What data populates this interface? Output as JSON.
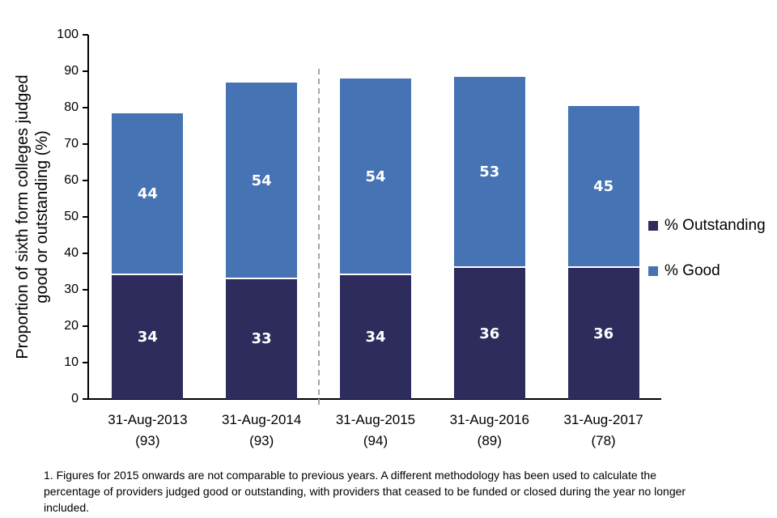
{
  "chart_data": {
    "type": "stacked-bar",
    "title": "",
    "ylabel": "Proportion of sixth form colleges judged good or outstanding (%)",
    "ylabel_lines": [
      "Proportion of sixth form colleges judged",
      "good or outstanding (%)"
    ],
    "ylim": [
      0,
      100
    ],
    "yticks": [
      0,
      10,
      20,
      30,
      40,
      50,
      60,
      70,
      80,
      90,
      100
    ],
    "grid": false,
    "legend_position": "right",
    "categories": [
      {
        "label": "31-Aug-2013",
        "sublabel": "(93)"
      },
      {
        "label": "31-Aug-2014",
        "sublabel": "(93)"
      },
      {
        "label": "31-Aug-2015",
        "sublabel": "(94)"
      },
      {
        "label": "31-Aug-2016",
        "sublabel": "(89)"
      },
      {
        "label": "31-Aug-2017",
        "sublabel": "(78)"
      }
    ],
    "series": [
      {
        "name": "% Outstanding",
        "color": "#2e2c5c",
        "values": [
          34,
          33,
          34,
          36,
          36
        ],
        "plot_values": [
          34,
          33,
          34,
          36,
          36
        ]
      },
      {
        "name": "% Good",
        "color": "#4573b3",
        "values": [
          44,
          54,
          54,
          53,
          45
        ],
        "plot_values": [
          44.5,
          54,
          54,
          52.5,
          44.5
        ]
      }
    ],
    "stack_order_bottom_to_top": [
      "% Outstanding",
      "% Good"
    ],
    "divider": {
      "after_category_index": 1,
      "style": "dashed",
      "color": "#a6a6a6"
    },
    "value_label_color": "#ffffff",
    "footnote_lines": [
      "1. Figures for 2015 onwards are not comparable to previous years. A different methodology has been used to calculate the",
      "percentage of providers judged good or outstanding, with providers that ceased to be funded or closed during the year no longer",
      "included."
    ]
  }
}
